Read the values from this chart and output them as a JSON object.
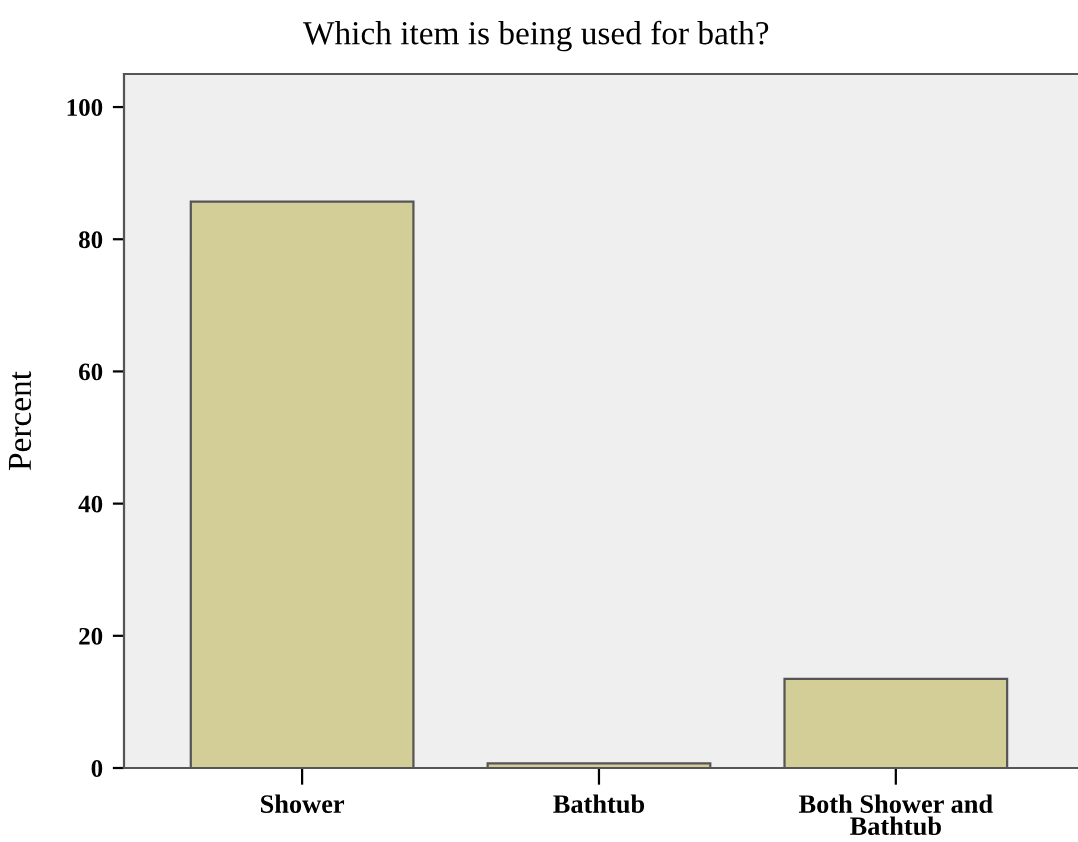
{
  "chart_data": {
    "type": "bar",
    "title": "Which item is being used for bath?",
    "ylabel": "Percent",
    "categories": [
      "Shower",
      "Bathtub",
      "Both Shower and\nBathtub"
    ],
    "values": [
      85.7,
      0.7,
      13.5
    ],
    "color": "#d3cd97",
    "ylim": [
      0,
      105
    ],
    "yticks": [
      0,
      20,
      40,
      60,
      80,
      100
    ],
    "grid": false,
    "legend": false
  }
}
